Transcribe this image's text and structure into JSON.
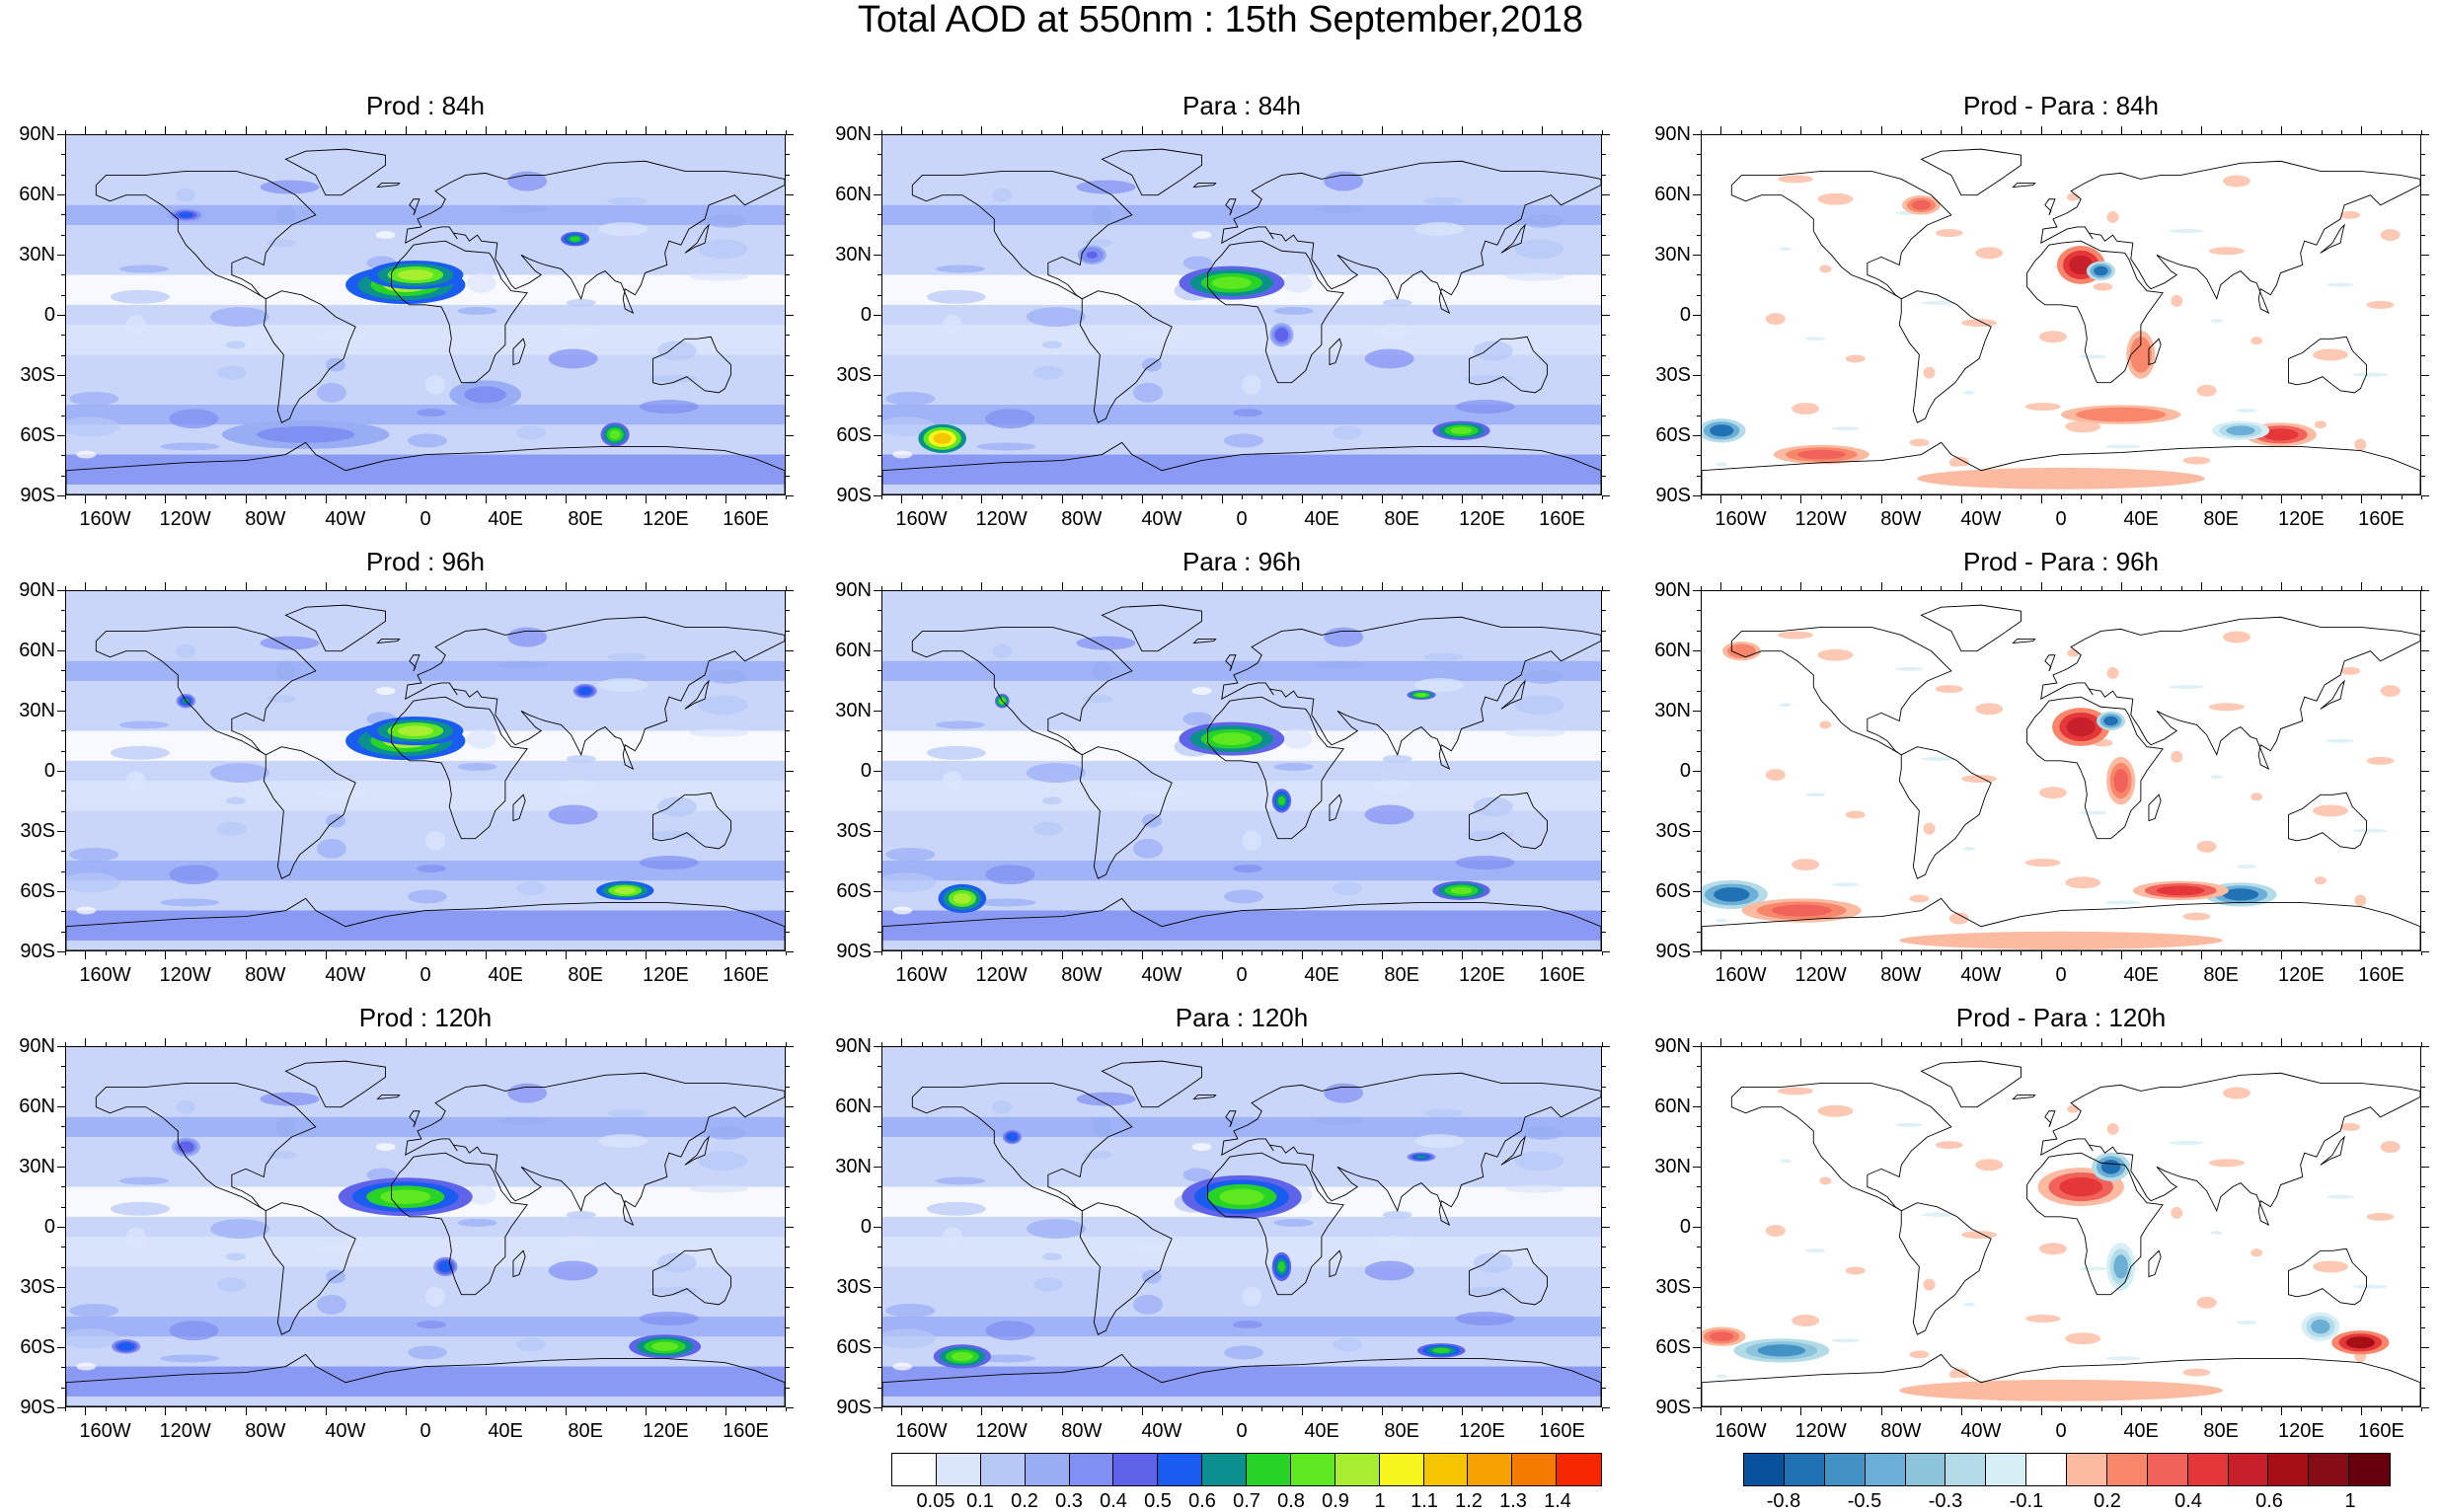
{
  "title": "Total AOD at 550nm : 15th September,2018",
  "panels": [
    {
      "title": "Prod : 84h",
      "kind": "aod"
    },
    {
      "title": "Para : 84h",
      "kind": "aod"
    },
    {
      "title": "Prod - Para : 84h",
      "kind": "diff"
    },
    {
      "title": "Prod : 96h",
      "kind": "aod"
    },
    {
      "title": "Para : 96h",
      "kind": "aod"
    },
    {
      "title": "Prod - Para : 96h",
      "kind": "diff"
    },
    {
      "title": "Prod : 120h",
      "kind": "aod"
    },
    {
      "title": "Para : 120h",
      "kind": "aod"
    },
    {
      "title": "Prod - Para : 120h",
      "kind": "diff"
    }
  ],
  "lat_labels": [
    "90N",
    "60N",
    "30N",
    "0",
    "30S",
    "60S",
    "90S"
  ],
  "lon_labels": [
    "160W",
    "120W",
    "80W",
    "40W",
    "0",
    "40E",
    "80E",
    "120E",
    "160E"
  ],
  "aod_colorbar": {
    "colors": [
      "#ffffff",
      "#dce6fb",
      "#b7c8f7",
      "#98adf4",
      "#7f8ff2",
      "#5e63ea",
      "#1a5cf0",
      "#0b8f8f",
      "#27d327",
      "#5fe81f",
      "#a6ee2f",
      "#f6f61e",
      "#f5c600",
      "#f5a200",
      "#f57a00",
      "#f52700"
    ],
    "labels": [
      "0.05",
      "0.1",
      "0.2",
      "0.3",
      "0.4",
      "0.5",
      "0.6",
      "0.7",
      "0.8",
      "0.9",
      "1",
      "1.1",
      "1.2",
      "1.3",
      "1.4"
    ]
  },
  "diff_colorbar": {
    "colors": [
      "#08519c",
      "#2171b5",
      "#4292c6",
      "#6baed6",
      "#8cc4dc",
      "#b3dce8",
      "#d6eef5",
      "#ffffff",
      "#fcbba1",
      "#f7866b",
      "#f0625a",
      "#e5363a",
      "#c8202a",
      "#a50f15",
      "#860c18",
      "#67000d"
    ],
    "labels": [
      "-0.8",
      "-0.5",
      "-0.3",
      "-0.1",
      "0.2",
      "0.4",
      "0.6",
      "1"
    ]
  },
  "colors": {
    "land_outline": "#000000",
    "aod_background": "#c9d6fa",
    "diff_background": "#ffffff"
  }
}
